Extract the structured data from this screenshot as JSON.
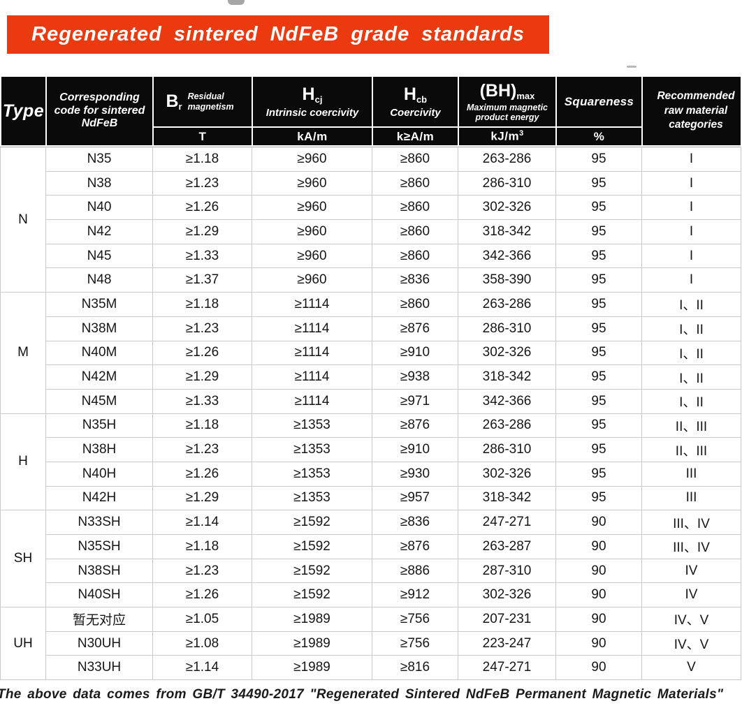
{
  "banner": {
    "title": "Regenerated sintered NdFeB grade standards",
    "bg_color": "#EC3A10",
    "text_color": "#FFFFFF"
  },
  "table": {
    "header": {
      "type_label": "Type",
      "code_label": "Corresponding code for sintered NdFeB",
      "br": {
        "symbol": "B",
        "sub": "r",
        "desc": "Residual magnetism",
        "unit": "T"
      },
      "hcj": {
        "symbol": "H",
        "sub": "cj",
        "desc": "Intrinsic coercivity",
        "unit": "kA/m"
      },
      "hcb": {
        "symbol": "H",
        "sub": "cb",
        "desc": "Coercivity",
        "unit": "k≥A/m"
      },
      "bhmax": {
        "symbol": "(BH)",
        "sub": "max",
        "desc": "Maximum magnetic product energy",
        "unit_main": "kJ/m",
        "unit_sup": "3"
      },
      "squareness": {
        "label": "Squareness",
        "unit": "%"
      },
      "recommended_label": "Recommended raw material categories",
      "header_bg": "#0A0A0A"
    },
    "groups": [
      {
        "type": "N",
        "rows": [
          {
            "code": "N35",
            "br": "≥1.18",
            "hcj": "≥960",
            "hcb": "≥860",
            "bhmax": "263-286",
            "sq": "95",
            "rec": "I"
          },
          {
            "code": "N38",
            "br": "≥1.23",
            "hcj": "≥960",
            "hcb": "≥860",
            "bhmax": "286-310",
            "sq": "95",
            "rec": "I"
          },
          {
            "code": "N40",
            "br": "≥1.26",
            "hcj": "≥960",
            "hcb": "≥860",
            "bhmax": "302-326",
            "sq": "95",
            "rec": "I"
          },
          {
            "code": "N42",
            "br": "≥1.29",
            "hcj": "≥960",
            "hcb": "≥860",
            "bhmax": "318-342",
            "sq": "95",
            "rec": "I"
          },
          {
            "code": "N45",
            "br": "≥1.33",
            "hcj": "≥960",
            "hcb": "≥860",
            "bhmax": "342-366",
            "sq": "95",
            "rec": "I"
          },
          {
            "code": "N48",
            "br": "≥1.37",
            "hcj": "≥960",
            "hcb": "≥836",
            "bhmax": "358-390",
            "sq": "95",
            "rec": "I"
          }
        ]
      },
      {
        "type": "M",
        "rows": [
          {
            "code": "N35M",
            "br": "≥1.18",
            "hcj": "≥1114",
            "hcb": "≥860",
            "bhmax": "263-286",
            "sq": "95",
            "rec": "I、II"
          },
          {
            "code": "N38M",
            "br": "≥1.23",
            "hcj": "≥1114",
            "hcb": "≥876",
            "bhmax": "286-310",
            "sq": "95",
            "rec": "I、II"
          },
          {
            "code": "N40M",
            "br": "≥1.26",
            "hcj": "≥1114",
            "hcb": "≥910",
            "bhmax": "302-326",
            "sq": "95",
            "rec": "I、II"
          },
          {
            "code": "N42M",
            "br": "≥1.29",
            "hcj": "≥1114",
            "hcb": "≥938",
            "bhmax": "318-342",
            "sq": "95",
            "rec": "I、II"
          },
          {
            "code": "N45M",
            "br": "≥1.33",
            "hcj": "≥1114",
            "hcb": "≥971",
            "bhmax": "342-366",
            "sq": "95",
            "rec": "I、II"
          }
        ]
      },
      {
        "type": "H",
        "rows": [
          {
            "code": "N35H",
            "br": "≥1.18",
            "hcj": "≥1353",
            "hcb": "≥876",
            "bhmax": "263-286",
            "sq": "95",
            "rec": "II、III"
          },
          {
            "code": "N38H",
            "br": "≥1.23",
            "hcj": "≥1353",
            "hcb": "≥910",
            "bhmax": "286-310",
            "sq": "95",
            "rec": "II、III"
          },
          {
            "code": "N40H",
            "br": "≥1.26",
            "hcj": "≥1353",
            "hcb": "≥930",
            "bhmax": "302-326",
            "sq": "95",
            "rec": "III"
          },
          {
            "code": "N42H",
            "br": "≥1.29",
            "hcj": "≥1353",
            "hcb": "≥957",
            "bhmax": "318-342",
            "sq": "95",
            "rec": "III"
          }
        ]
      },
      {
        "type": "SH",
        "rows": [
          {
            "code": "N33SH",
            "br": "≥1.14",
            "hcj": "≥1592",
            "hcb": "≥836",
            "bhmax": "247-271",
            "sq": "90",
            "rec": "III、IV"
          },
          {
            "code": "N35SH",
            "br": "≥1.18",
            "hcj": "≥1592",
            "hcb": "≥876",
            "bhmax": "263-287",
            "sq": "90",
            "rec": "III、IV"
          },
          {
            "code": "N38SH",
            "br": "≥1.23",
            "hcj": "≥1592",
            "hcb": "≥886",
            "bhmax": "287-310",
            "sq": "90",
            "rec": "IV"
          },
          {
            "code": "N40SH",
            "br": "≥1.26",
            "hcj": "≥1592",
            "hcb": "≥912",
            "bhmax": "302-326",
            "sq": "90",
            "rec": "IV"
          }
        ]
      },
      {
        "type": "UH",
        "rows": [
          {
            "code": "暂无对应",
            "br": "≥1.05",
            "hcj": "≥1989",
            "hcb": "≥756",
            "bhmax": "207-231",
            "sq": "90",
            "rec": "IV、V"
          },
          {
            "code": "N30UH",
            "br": "≥1.08",
            "hcj": "≥1989",
            "hcb": "≥756",
            "bhmax": "223-247",
            "sq": "90",
            "rec": "IV、V"
          },
          {
            "code": "N33UH",
            "br": "≥1.14",
            "hcj": "≥1989",
            "hcb": "≥816",
            "bhmax": "247-271",
            "sq": "90",
            "rec": "V"
          }
        ]
      }
    ]
  },
  "footer": {
    "note": "The above data comes from GB/T 34490-2017 \"Regenerated Sintered NdFeB Permanent Magnetic Materials\""
  }
}
